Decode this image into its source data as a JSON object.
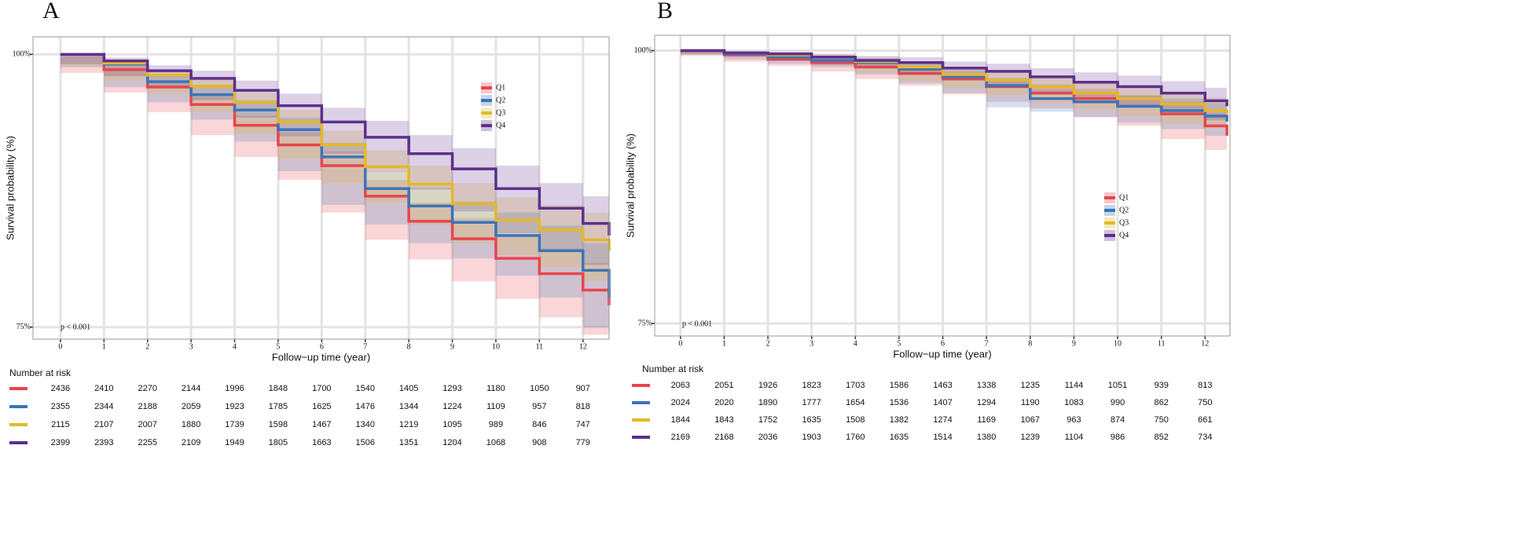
{
  "chart_data": [
    {
      "type": "line",
      "step": true,
      "panel_label": "A",
      "xlabel": "Follow−up time (year)",
      "ylabel": "Survival probability (%)",
      "annotation": "p < 0.001",
      "xlim": [
        -0.63,
        12.6
      ],
      "xticks": [
        0,
        1,
        2,
        3,
        4,
        5,
        6,
        7,
        8,
        9,
        10,
        11,
        12
      ],
      "ylim": [
        73.9,
        101.6
      ],
      "yticks": [
        {
          "value": 100,
          "label": "100%"
        },
        {
          "value": 75,
          "label": "75%"
        }
      ],
      "grid": true,
      "x": [
        0,
        1,
        2,
        3,
        4,
        5,
        6,
        7,
        8,
        9,
        10,
        11,
        12,
        12.6
      ],
      "series": [
        {
          "name": "Q1",
          "color": "#e8454d",
          "values": [
            100,
            98.6,
            97.0,
            95.4,
            93.5,
            91.7,
            89.8,
            87.0,
            84.7,
            83.1,
            81.3,
            79.9,
            78.4,
            77.0
          ],
          "lower": [
            100,
            98.3,
            96.5,
            94.7,
            92.6,
            90.6,
            88.5,
            85.5,
            83.0,
            81.2,
            79.2,
            77.6,
            75.9,
            74.3
          ],
          "upper": [
            100,
            98.9,
            97.5,
            96.1,
            94.4,
            92.8,
            91.1,
            88.5,
            86.4,
            85.0,
            83.4,
            82.2,
            80.9,
            79.7
          ]
        },
        {
          "name": "Q2",
          "color": "#3a75b8",
          "values": [
            100,
            99.1,
            97.5,
            96.3,
            94.9,
            93.1,
            90.6,
            87.7,
            86.1,
            84.6,
            83.4,
            82.0,
            80.2,
            77.7
          ],
          "lower": [
            100,
            98.8,
            97.0,
            95.6,
            94.0,
            92.0,
            89.3,
            86.2,
            84.4,
            82.7,
            81.3,
            79.7,
            77.7,
            75.0
          ],
          "upper": [
            100,
            99.4,
            98.0,
            97.0,
            95.8,
            94.2,
            91.9,
            89.2,
            87.8,
            86.5,
            85.5,
            84.3,
            82.7,
            80.4
          ]
        },
        {
          "name": "Q3",
          "color": "#e5b827",
          "values": [
            100,
            99.2,
            98.1,
            97.1,
            95.6,
            93.8,
            91.7,
            89.7,
            88.1,
            86.3,
            84.8,
            83.9,
            83.0,
            82.0
          ],
          "lower": [
            100,
            98.9,
            97.6,
            96.4,
            94.7,
            92.7,
            90.4,
            88.2,
            86.4,
            84.4,
            82.7,
            81.6,
            80.5,
            79.3
          ],
          "upper": [
            100,
            99.5,
            98.6,
            97.8,
            96.5,
            94.9,
            93.0,
            91.2,
            89.8,
            88.2,
            86.9,
            86.2,
            85.5,
            84.7
          ]
        },
        {
          "name": "Q4",
          "color": "#5e2f8c",
          "values": [
            100,
            99.4,
            98.5,
            97.8,
            96.7,
            95.3,
            93.8,
            92.4,
            90.9,
            89.5,
            87.7,
            85.9,
            84.5,
            83.4
          ],
          "lower": [
            100,
            99.1,
            98.0,
            97.1,
            95.8,
            94.2,
            92.5,
            90.9,
            89.2,
            87.6,
            85.6,
            83.6,
            82.0,
            80.7
          ],
          "upper": [
            100,
            99.7,
            99.0,
            98.5,
            97.6,
            96.4,
            95.1,
            93.9,
            92.6,
            91.4,
            89.8,
            88.2,
            87.0,
            86.1
          ]
        }
      ],
      "risk_table": {
        "title": "Number at risk",
        "rows": [
          [
            2436,
            2410,
            2270,
            2144,
            1996,
            1848,
            1700,
            1540,
            1405,
            1293,
            1180,
            1050,
            907
          ],
          [
            2355,
            2344,
            2188,
            2059,
            1923,
            1785,
            1625,
            1476,
            1344,
            1224,
            1109,
            957,
            818
          ],
          [
            2115,
            2107,
            2007,
            1880,
            1739,
            1598,
            1467,
            1340,
            1219,
            1095,
            989,
            846,
            747
          ],
          [
            2399,
            2393,
            2255,
            2109,
            1949,
            1805,
            1663,
            1506,
            1351,
            1204,
            1068,
            908,
            779
          ]
        ]
      }
    },
    {
      "type": "line",
      "step": true,
      "panel_label": "B",
      "xlabel": "Follow−up time (year)",
      "ylabel": "Survival probability (%)",
      "annotation": "p < 0.001",
      "xlim": [
        -0.59,
        12.57
      ],
      "xticks": [
        0,
        1,
        2,
        3,
        4,
        5,
        6,
        7,
        8,
        9,
        10,
        11,
        12
      ],
      "ylim": [
        73.85,
        101.4
      ],
      "yticks": [
        {
          "value": 100,
          "label": "100%"
        },
        {
          "value": 75,
          "label": "75%"
        }
      ],
      "grid": true,
      "x": [
        0,
        1,
        2,
        3,
        4,
        5,
        6,
        7,
        8,
        9,
        10,
        11,
        12,
        12.5
      ],
      "series": [
        {
          "name": "Q1",
          "color": "#e8454d",
          "values": [
            100,
            99.6,
            99.2,
            98.9,
            98.5,
            97.9,
            97.4,
            96.7,
            96.1,
            95.6,
            94.9,
            94.2,
            93.1,
            92.2
          ],
          "lower": [
            100,
            99.5,
            99.0,
            98.6,
            98.1,
            97.4,
            96.8,
            96.0,
            95.3,
            94.7,
            93.9,
            93.1,
            91.9,
            90.9
          ],
          "upper": [
            100,
            99.7,
            99.4,
            99.2,
            98.9,
            98.4,
            98.0,
            97.4,
            96.9,
            96.5,
            95.9,
            95.3,
            94.3,
            93.5
          ]
        },
        {
          "name": "Q2",
          "color": "#3a75b8",
          "values": [
            100,
            99.7,
            99.4,
            99.1,
            98.9,
            98.3,
            97.6,
            96.8,
            95.6,
            95.3,
            94.9,
            94.5,
            94.0,
            93.5
          ],
          "lower": [
            100,
            99.6,
            99.2,
            98.8,
            98.5,
            97.8,
            97.0,
            96.1,
            94.8,
            94.4,
            93.9,
            93.4,
            92.8,
            92.2
          ],
          "upper": [
            100,
            99.8,
            99.6,
            99.4,
            99.3,
            98.8,
            98.2,
            97.5,
            96.4,
            96.2,
            95.9,
            95.6,
            95.2,
            94.8
          ]
        },
        {
          "name": "Q3",
          "color": "#e5b827",
          "values": [
            100,
            99.8,
            99.6,
            99.4,
            99.0,
            98.5,
            97.8,
            97.3,
            96.7,
            96.1,
            95.6,
            95.1,
            94.5,
            94.2
          ],
          "lower": [
            100,
            99.7,
            99.4,
            99.1,
            98.6,
            98.0,
            97.2,
            96.6,
            95.9,
            95.2,
            94.6,
            94.0,
            93.3,
            92.9
          ],
          "upper": [
            100,
            99.9,
            99.8,
            99.7,
            99.4,
            99.0,
            98.4,
            98.0,
            97.5,
            97.0,
            96.6,
            96.2,
            95.7,
            95.5
          ]
        },
        {
          "name": "Q4",
          "color": "#5e2f8c",
          "values": [
            100,
            99.8,
            99.7,
            99.4,
            99.1,
            98.9,
            98.4,
            98.1,
            97.6,
            97.1,
            96.7,
            96.1,
            95.4,
            94.9
          ],
          "lower": [
            100,
            99.7,
            99.5,
            99.1,
            98.7,
            98.4,
            97.8,
            97.4,
            96.8,
            96.2,
            95.7,
            95.0,
            94.2,
            93.6
          ],
          "upper": [
            100,
            99.9,
            99.9,
            99.7,
            99.5,
            99.4,
            99.0,
            98.8,
            98.4,
            98.0,
            97.7,
            97.2,
            96.6,
            96.2
          ]
        }
      ],
      "risk_table": {
        "title": "Number at risk",
        "rows": [
          [
            2063,
            2051,
            1926,
            1823,
            1703,
            1586,
            1463,
            1338,
            1235,
            1144,
            1051,
            939,
            813
          ],
          [
            2024,
            2020,
            1890,
            1777,
            1654,
            1536,
            1407,
            1294,
            1190,
            1083,
            990,
            862,
            750
          ],
          [
            1844,
            1843,
            1752,
            1635,
            1508,
            1382,
            1274,
            1169,
            1067,
            963,
            874,
            750,
            661
          ],
          [
            2169,
            2168,
            2036,
            1903,
            1760,
            1635,
            1514,
            1380,
            1239,
            1104,
            986,
            852,
            734
          ]
        ]
      }
    }
  ]
}
